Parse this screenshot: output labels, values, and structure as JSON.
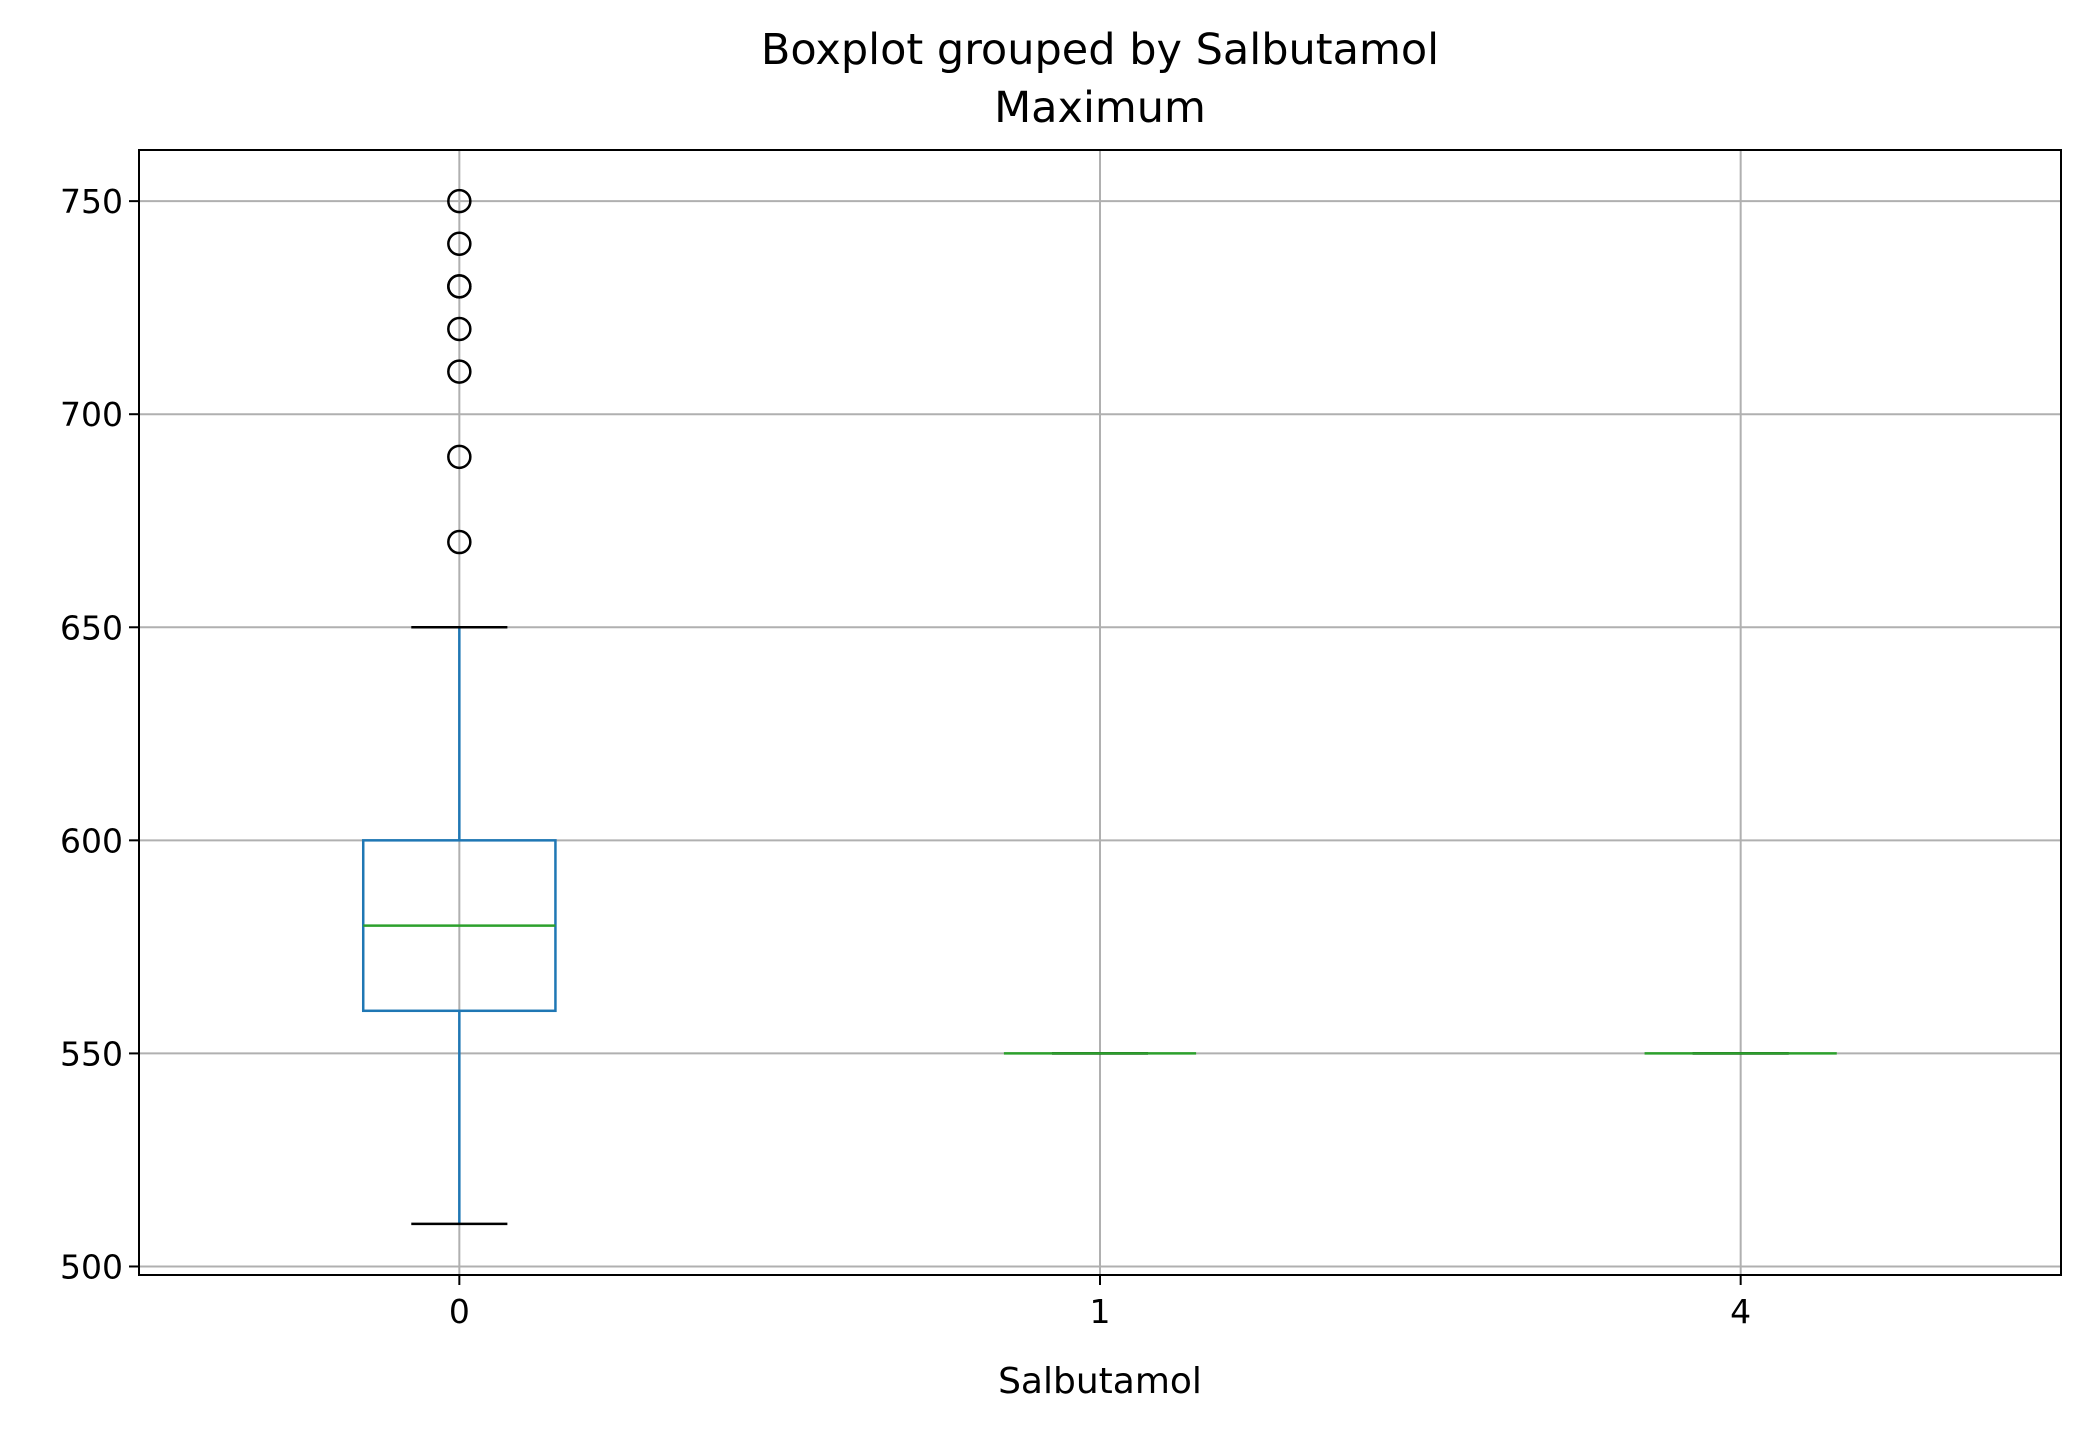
{
  "chart_data": {
    "type": "box",
    "suptitle": "Boxplot grouped by Salbutamol",
    "title": "Maximum",
    "xlabel": "Salbutamol",
    "ylabel": "",
    "categories": [
      "0",
      "1",
      "4"
    ],
    "yticks": [
      "500",
      "550",
      "600",
      "650",
      "700",
      "750"
    ],
    "ylim": [
      498,
      762
    ],
    "grid": true,
    "boxes": [
      {
        "category": "0",
        "whisker_low": 510,
        "q1": 560,
        "median": 580,
        "q3": 600,
        "whisker_high": 650,
        "outliers": [
          670,
          690,
          710,
          720,
          730,
          730,
          740,
          750
        ]
      },
      {
        "category": "1",
        "whisker_low": 550,
        "q1": 550,
        "median": 550,
        "q3": 550,
        "whisker_high": 550,
        "outliers": []
      },
      {
        "category": "4",
        "whisker_low": 550,
        "q1": 550,
        "median": 550,
        "q3": 550,
        "whisker_high": 550,
        "outliers": []
      }
    ],
    "colors": {
      "box": "#1f77b4",
      "median": "#2ca02c",
      "whisker_cap": "#000000",
      "grid": "#b0b0b0"
    }
  }
}
